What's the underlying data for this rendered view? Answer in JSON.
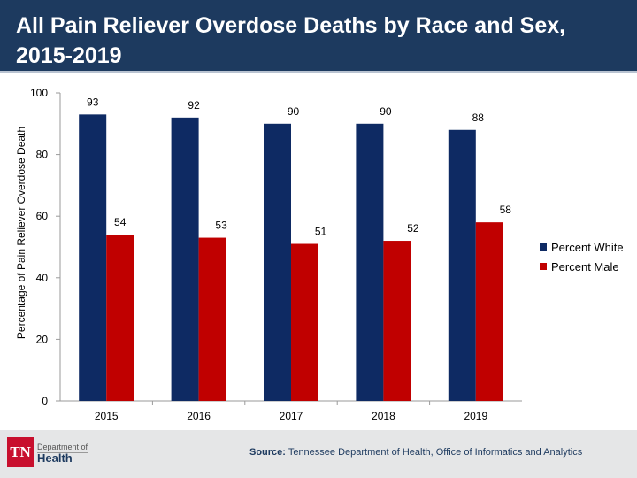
{
  "header": {
    "title": "All Pain Reliever Overdose Deaths by Race and Sex, 2015-2019"
  },
  "chart_data": {
    "type": "bar",
    "title": "All Pain Reliever Overdose Deaths by Race and Sex, 2015-2019",
    "xlabel": "",
    "ylabel": "Percentage of Pain Reliever Overdose Death",
    "categories": [
      "2015",
      "2016",
      "2017",
      "2018",
      "2019"
    ],
    "series": [
      {
        "name": "Percent White",
        "values": [
          93,
          92,
          90,
          90,
          88
        ],
        "color": "#0e2a63"
      },
      {
        "name": "Percent Male",
        "values": [
          54,
          53,
          51,
          52,
          58
        ],
        "color": "#c00000"
      }
    ],
    "ylim": [
      0,
      100
    ],
    "yticks": [
      0,
      20,
      40,
      60,
      80,
      100
    ],
    "grid": false,
    "legend": "right"
  },
  "footer": {
    "logo_mark": "TN",
    "logo_line1": "Department of",
    "logo_line2": "Health",
    "source_label": "Source:",
    "source_text": " Tennessee Department of Health, Office of Informatics and Analytics"
  }
}
